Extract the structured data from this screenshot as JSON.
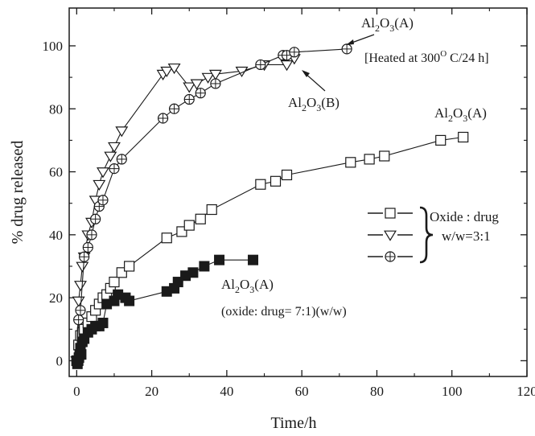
{
  "chart_data": {
    "type": "scatter",
    "xlabel": "Time/h",
    "ylabel": "% drug released",
    "xlim": [
      -2,
      120
    ],
    "ylim": [
      -5,
      112
    ],
    "x_ticks": [
      0,
      20,
      40,
      60,
      80,
      100,
      120
    ],
    "y_ticks": [
      0,
      20,
      40,
      60,
      80,
      100
    ],
    "grid": false,
    "series": [
      {
        "marker": "open-square",
        "x": [
          0,
          0.5,
          1,
          1.5,
          2,
          3,
          4,
          5,
          6,
          7,
          8,
          9,
          10,
          12,
          14,
          24,
          28,
          30,
          33,
          36,
          49,
          53,
          56,
          73,
          78,
          82,
          97,
          103
        ],
        "y": [
          0,
          5,
          8,
          9,
          10,
          12,
          14,
          16,
          18,
          20,
          21,
          23,
          25,
          28,
          30,
          39,
          41,
          43,
          45,
          48,
          56,
          57,
          59,
          63,
          64,
          65,
          70,
          71
        ],
        "endpoint_label": "Al2O3(A)"
      },
      {
        "marker": "open-triangle-down",
        "x": [
          0,
          0.5,
          1,
          1.5,
          2,
          3,
          4,
          5,
          6,
          7,
          9,
          10,
          12,
          23,
          24,
          26,
          30,
          32,
          35,
          37,
          44,
          50,
          56,
          58
        ],
        "y": [
          0,
          19,
          24,
          30,
          33,
          40,
          44,
          51,
          56,
          60,
          65,
          68,
          73,
          91,
          92,
          93,
          87,
          88,
          90,
          91,
          92,
          94,
          94,
          96
        ],
        "annotation": "Al2O3(B)"
      },
      {
        "marker": "crossed-circle",
        "x": [
          0,
          0.5,
          1,
          2,
          3,
          4,
          5,
          6,
          7,
          10,
          12,
          23,
          26,
          30,
          33,
          37,
          49,
          55,
          56,
          58,
          72
        ],
        "y": [
          0,
          13,
          16,
          33,
          36,
          40,
          45,
          49,
          51,
          61,
          64,
          77,
          80,
          83,
          85,
          88,
          94,
          97,
          97,
          98,
          99
        ],
        "endpoint_label": "Al2O3(A)"
      },
      {
        "marker": "filled-square",
        "x": [
          0,
          0.2,
          0.4,
          0.6,
          0.8,
          1,
          1.2,
          1.5,
          2,
          3,
          4,
          5,
          6,
          7,
          8,
          10,
          11,
          13,
          14,
          24,
          26,
          27,
          29,
          31,
          34,
          38,
          47
        ],
        "y": [
          0,
          -1,
          0,
          1,
          2,
          4,
          2,
          6,
          7,
          9,
          10,
          11,
          11,
          12,
          18,
          19,
          21,
          20,
          19,
          22,
          23,
          25,
          27,
          28,
          30,
          32,
          32
        ],
        "annotation": "Al2O3(A)"
      }
    ],
    "legend": {
      "placement": "right",
      "entries": [
        "open-square",
        "open-triangle-down",
        "crossed-circle"
      ],
      "group_label_line1": "Oxide : drug",
      "group_label_line2": "w/w=3:1"
    },
    "annotations": {
      "top_label": {
        "base": "Al",
        "sub1": "2",
        "mid": "O",
        "sub2": "3",
        "tail": "(A)"
      },
      "heated": {
        "pre": "[Heated at 300",
        "sup": "O",
        "post": " C/24 h]"
      },
      "b_label": {
        "base": "Al",
        "sub1": "2",
        "mid": "O",
        "sub2": "3",
        "tail": "(B)"
      },
      "right_label": {
        "base": "Al",
        "sub1": "2",
        "mid": "O",
        "sub2": "3",
        "tail": "(A)"
      },
      "lower_label": {
        "base": "Al",
        "sub1": "2",
        "mid": "O",
        "sub2": "3",
        "tail": "(A)"
      },
      "lower_ratio": "(oxide: drug= 7:1)(w/w)"
    }
  }
}
